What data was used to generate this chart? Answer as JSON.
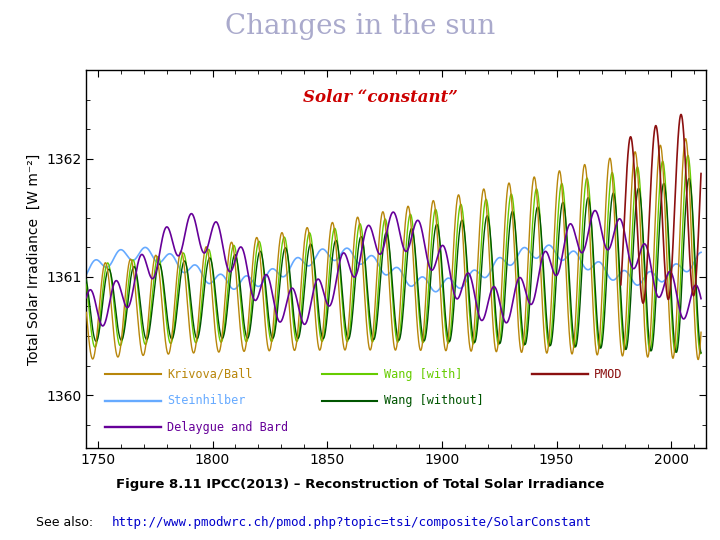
{
  "title": "Changes in the sun",
  "title_color": "#aaaacc",
  "title_fontsize": 20,
  "solar_constant_label": "Solar “constant”",
  "solar_constant_color": "#cc0000",
  "ylabel": "Total Solar Irradiance  [W m⁻²]",
  "ylabel_fontsize": 10,
  "xlim": [
    1745,
    2015
  ],
  "ylim": [
    1359.55,
    1362.75
  ],
  "yticks": [
    1360,
    1361,
    1362
  ],
  "xticks": [
    1750,
    1800,
    1850,
    1900,
    1950,
    2000
  ],
  "figure_caption": "Figure 8.11 IPCC(2013) – Reconstruction of Total Solar Irradiance",
  "url_label": "See also: ",
  "url_link": "http://www.pmodwrc.ch/pmod.php?topic=tsi/composite/SolarConstant",
  "url_color": "#0000cc",
  "background_color": "#ffffff",
  "legend_items": [
    {
      "label": "Krivova/Ball",
      "color": "#b8860b",
      "lw": 1.0
    },
    {
      "label": "Wang [with]",
      "color": "#66cc00",
      "lw": 1.0
    },
    {
      "label": "PMOD",
      "color": "#8b1010",
      "lw": 1.2
    },
    {
      "label": "Steinhilber",
      "color": "#66aaff",
      "lw": 1.2
    },
    {
      "label": "Wang [without]",
      "color": "#005500",
      "lw": 1.0
    },
    {
      "label": "Delaygue and Bard",
      "color": "#660099",
      "lw": 1.2
    }
  ],
  "seed": 42
}
